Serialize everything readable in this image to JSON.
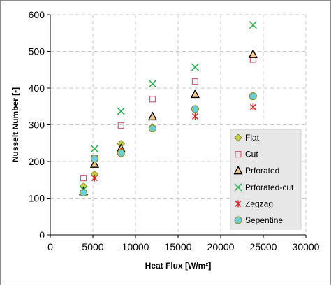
{
  "chart_data": {
    "type": "scatter",
    "title": "",
    "xlabel": "Heat Flux [W/m²]",
    "ylabel": "Nusselt Number [-]",
    "xlim": [
      0,
      30000
    ],
    "ylim": [
      0,
      600
    ],
    "x_ticks": [
      0,
      5000,
      10000,
      15000,
      20000,
      25000,
      30000
    ],
    "y_ticks": [
      0,
      100,
      200,
      300,
      400,
      500,
      600
    ],
    "grid": true,
    "legend_position": "bottom-right",
    "series": [
      {
        "name": "Flat",
        "marker": "diamond",
        "color": "#c6d14b",
        "stroke": "#8a8a20",
        "x": [
          3900,
          5200,
          8300,
          12000,
          17000,
          23800
        ],
        "y": [
          133,
          165,
          248,
          293,
          343,
          380
        ]
      },
      {
        "name": "Cut",
        "marker": "square",
        "color": "none",
        "stroke": "#d9607a",
        "x": [
          3900,
          5200,
          8300,
          12000,
          17000,
          23800
        ],
        "y": [
          155,
          210,
          298,
          370,
          418,
          478
        ]
      },
      {
        "name": "Prforated",
        "marker": "triangle",
        "color": "#f5c98a",
        "stroke": "#000000",
        "x": [
          3900,
          5200,
          8300,
          12000,
          17000,
          23800
        ],
        "y": [
          118,
          193,
          235,
          322,
          383,
          492
        ]
      },
      {
        "name": "Prforated-cut",
        "marker": "x",
        "color": "none",
        "stroke": "#22b14c",
        "x": [
          3900,
          5200,
          8300,
          12000,
          17000,
          23800
        ],
        "y": [
          123,
          235,
          337,
          412,
          457,
          572
        ]
      },
      {
        "name": "Zegzag",
        "marker": "star",
        "color": "none",
        "stroke": "#e02020",
        "x": [
          3900,
          5200,
          8300,
          12000,
          17000,
          23800
        ],
        "y": [
          115,
          155,
          228,
          290,
          323,
          348
        ]
      },
      {
        "name": "Sepentine",
        "marker": "circle",
        "color": "#67d0d8",
        "stroke": "#8a8a20",
        "x": [
          3900,
          5200,
          8300,
          12000,
          17000,
          23800
        ],
        "y": [
          115,
          208,
          223,
          290,
          343,
          378
        ]
      }
    ]
  }
}
